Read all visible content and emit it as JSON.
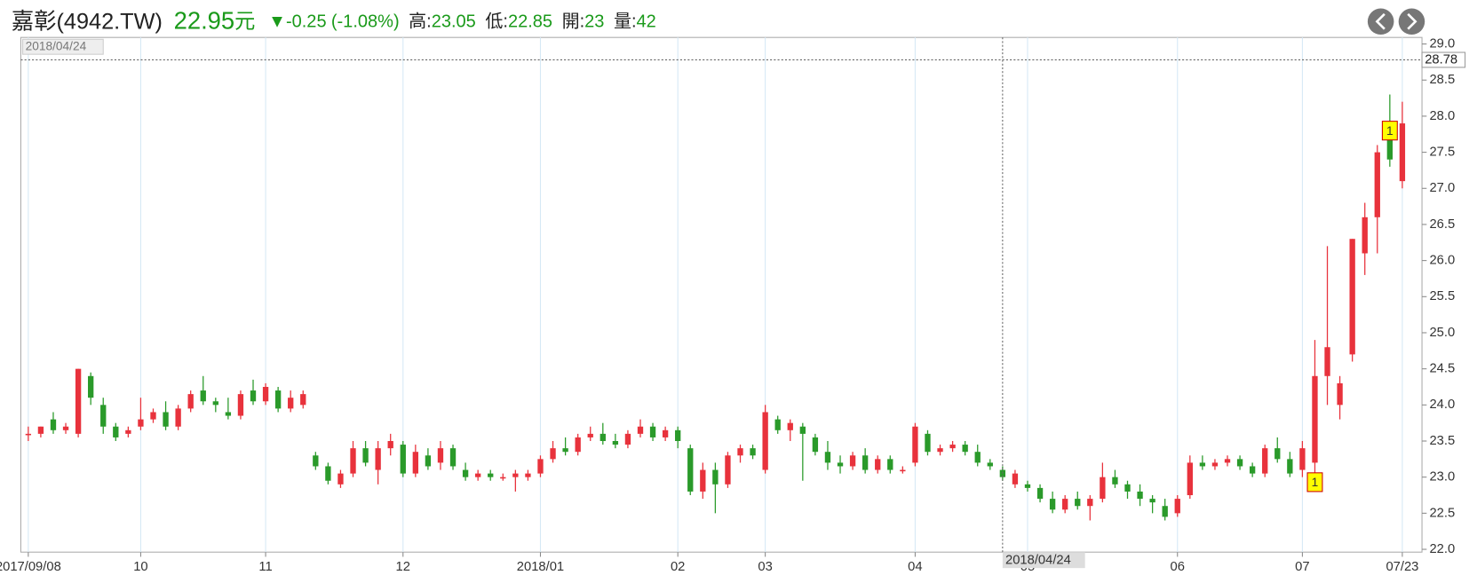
{
  "header": {
    "name": "嘉彰(4942.TW)",
    "price": 22.95,
    "unit": "元",
    "change_arrow": "▼",
    "change": -0.25,
    "change_pct": "(-1.08%)",
    "stats": [
      {
        "label": "高:",
        "value": 23.05
      },
      {
        "label": "低:",
        "value": 22.85
      },
      {
        "label": "開:",
        "value": 23
      },
      {
        "label": "量:",
        "value": 42
      }
    ]
  },
  "chart_data": {
    "type": "candlestick",
    "up_color": "#e8323c",
    "down_color": "#2a9a2a",
    "open": [
      23.6,
      23.6,
      23.8,
      23.65,
      23.6,
      24.4,
      24.0,
      23.7,
      23.6,
      23.7,
      23.8,
      23.9,
      23.7,
      23.95,
      24.2,
      24.05,
      23.9,
      23.85,
      24.2,
      24.05,
      24.2,
      23.95,
      24.0,
      23.3,
      23.15,
      22.9,
      23.05,
      23.4,
      23.1,
      23.4,
      23.45,
      23.05,
      23.3,
      23.2,
      23.4,
      23.1,
      23.0,
      23.05,
      23.0,
      23.0,
      23.0,
      23.05,
      23.25,
      23.4,
      23.35,
      23.55,
      23.6,
      23.5,
      23.45,
      23.6,
      23.7,
      23.55,
      23.65,
      23.4,
      22.8,
      23.1,
      22.9,
      23.3,
      23.4,
      23.1,
      23.8,
      23.65,
      23.7,
      23.55,
      23.35,
      23.2,
      23.15,
      23.3,
      23.1,
      23.25,
      23.1,
      23.2,
      23.6,
      23.35,
      23.4,
      23.45,
      23.35,
      23.2,
      23.1,
      22.9,
      22.9,
      22.85,
      22.7,
      22.55,
      22.7,
      22.6,
      22.7,
      23.0,
      22.9,
      22.8,
      22.7,
      22.6,
      22.5,
      22.75,
      23.2,
      23.15,
      23.2,
      23.25,
      23.15,
      23.05,
      23.4,
      23.25,
      23.1,
      23.2,
      24.4,
      24.0,
      24.7,
      26.1,
      26.6,
      27.7,
      27.1
    ],
    "high": [
      23.7,
      23.7,
      23.9,
      23.75,
      24.5,
      24.45,
      24.1,
      23.75,
      23.7,
      24.1,
      23.95,
      24.05,
      24.0,
      24.2,
      24.4,
      24.1,
      24.1,
      24.2,
      24.35,
      24.3,
      24.25,
      24.2,
      24.2,
      23.35,
      23.2,
      23.1,
      23.5,
      23.5,
      23.5,
      23.6,
      23.5,
      23.45,
      23.4,
      23.5,
      23.45,
      23.2,
      23.1,
      23.1,
      23.05,
      23.1,
      23.1,
      23.3,
      23.5,
      23.55,
      23.6,
      23.7,
      23.75,
      23.6,
      23.65,
      23.8,
      23.75,
      23.7,
      23.7,
      23.45,
      23.2,
      23.2,
      23.35,
      23.45,
      23.45,
      24.0,
      23.85,
      23.8,
      23.75,
      23.6,
      23.5,
      23.3,
      23.35,
      23.4,
      23.3,
      23.3,
      23.15,
      23.75,
      23.65,
      23.45,
      23.5,
      23.5,
      23.45,
      23.25,
      23.15,
      23.1,
      22.95,
      22.9,
      22.8,
      22.75,
      22.8,
      22.75,
      23.2,
      23.1,
      22.95,
      22.9,
      22.75,
      22.7,
      22.75,
      23.3,
      23.3,
      23.25,
      23.3,
      23.3,
      23.2,
      23.45,
      23.55,
      23.35,
      23.5,
      24.9,
      26.2,
      24.4,
      26.3,
      26.8,
      27.6,
      28.3,
      28.2
    ],
    "low": [
      23.5,
      23.55,
      23.6,
      23.6,
      23.55,
      24.0,
      23.6,
      23.5,
      23.55,
      23.65,
      23.75,
      23.65,
      23.65,
      23.9,
      24.0,
      23.9,
      23.8,
      23.8,
      24.0,
      24.0,
      23.9,
      23.9,
      23.95,
      23.1,
      22.9,
      22.85,
      23.0,
      23.15,
      22.9,
      23.3,
      23.0,
      23.0,
      23.1,
      23.1,
      23.1,
      22.95,
      22.95,
      22.95,
      22.95,
      22.8,
      22.95,
      23.0,
      23.2,
      23.3,
      23.3,
      23.5,
      23.45,
      23.4,
      23.4,
      23.55,
      23.5,
      23.5,
      23.4,
      22.75,
      22.7,
      22.5,
      22.85,
      23.2,
      23.25,
      23.05,
      23.6,
      23.5,
      22.95,
      23.3,
      23.1,
      23.05,
      23.1,
      23.05,
      23.05,
      23.05,
      23.05,
      23.15,
      23.3,
      23.3,
      23.35,
      23.3,
      23.15,
      23.1,
      22.95,
      22.85,
      22.8,
      22.65,
      22.5,
      22.5,
      22.55,
      22.4,
      22.65,
      22.85,
      22.7,
      22.6,
      22.5,
      22.4,
      22.45,
      22.7,
      23.1,
      23.1,
      23.15,
      23.1,
      23.0,
      23.0,
      23.2,
      23.0,
      23.0,
      23.0,
      24.0,
      23.8,
      24.6,
      25.8,
      26.1,
      27.3,
      27.0
    ],
    "close": [
      23.6,
      23.7,
      23.65,
      23.7,
      24.5,
      24.1,
      23.7,
      23.55,
      23.65,
      23.8,
      23.9,
      23.7,
      23.95,
      24.15,
      24.05,
      24.0,
      23.85,
      24.15,
      24.05,
      24.25,
      23.95,
      24.1,
      24.15,
      23.15,
      22.95,
      23.05,
      23.4,
      23.2,
      23.4,
      23.5,
      23.05,
      23.35,
      23.15,
      23.4,
      23.15,
      23.0,
      23.05,
      23.0,
      23.0,
      23.05,
      23.05,
      23.25,
      23.4,
      23.35,
      23.55,
      23.6,
      23.5,
      23.45,
      23.6,
      23.7,
      23.55,
      23.65,
      23.5,
      22.8,
      23.1,
      22.9,
      23.3,
      23.4,
      23.3,
      23.9,
      23.65,
      23.75,
      23.6,
      23.35,
      23.2,
      23.15,
      23.3,
      23.1,
      23.25,
      23.1,
      23.1,
      23.7,
      23.35,
      23.4,
      23.45,
      23.35,
      23.2,
      23.15,
      23.0,
      23.05,
      22.85,
      22.7,
      22.55,
      22.7,
      22.6,
      22.7,
      23.0,
      22.9,
      22.8,
      22.7,
      22.65,
      22.45,
      22.7,
      23.2,
      23.15,
      23.2,
      23.25,
      23.15,
      23.05,
      23.4,
      23.25,
      23.05,
      23.4,
      24.4,
      24.8,
      24.3,
      26.3,
      26.6,
      27.5,
      27.4,
      27.9
    ],
    "ylim": [
      22,
      29
    ],
    "yticks": [
      {
        "value": 22,
        "label": "22.0"
      },
      22.5,
      {
        "value": 23,
        "label": "23.0"
      },
      23.5,
      {
        "value": 24,
        "label": "24.0"
      },
      24.5,
      {
        "value": 25,
        "label": "25.0"
      },
      25.5,
      {
        "value": 26,
        "label": "26.0"
      },
      26.5,
      {
        "value": 27,
        "label": "27.0"
      },
      27.5,
      {
        "value": 28,
        "label": "28.0"
      },
      28.5,
      {
        "value": 29,
        "label": "29.0"
      }
    ],
    "xticks": [
      {
        "value": 0,
        "label": "2017/09/08"
      },
      {
        "value": 9,
        "label": "10"
      },
      {
        "value": 19,
        "label": "11"
      },
      {
        "value": 30,
        "label": "12"
      },
      {
        "value": 41,
        "label": "2018/01"
      },
      {
        "value": 52,
        "label": "02"
      },
      {
        "value": 59,
        "label": "03"
      },
      {
        "value": 71,
        "label": "04"
      },
      {
        "value": 80,
        "label": "05"
      },
      {
        "value": 92,
        "label": "06"
      },
      {
        "value": 102,
        "label": "07"
      },
      {
        "value": 110,
        "label": "07/23"
      }
    ],
    "grid": "x",
    "crosshair": {
      "x": 78,
      "label": "2018/04/24",
      "y": 28.78,
      "y_label": "28.78"
    },
    "annotations": [
      {
        "x": 103,
        "y": 22.93,
        "text": "1"
      },
      {
        "x": 109,
        "y": 27.8,
        "text": "1"
      }
    ]
  }
}
